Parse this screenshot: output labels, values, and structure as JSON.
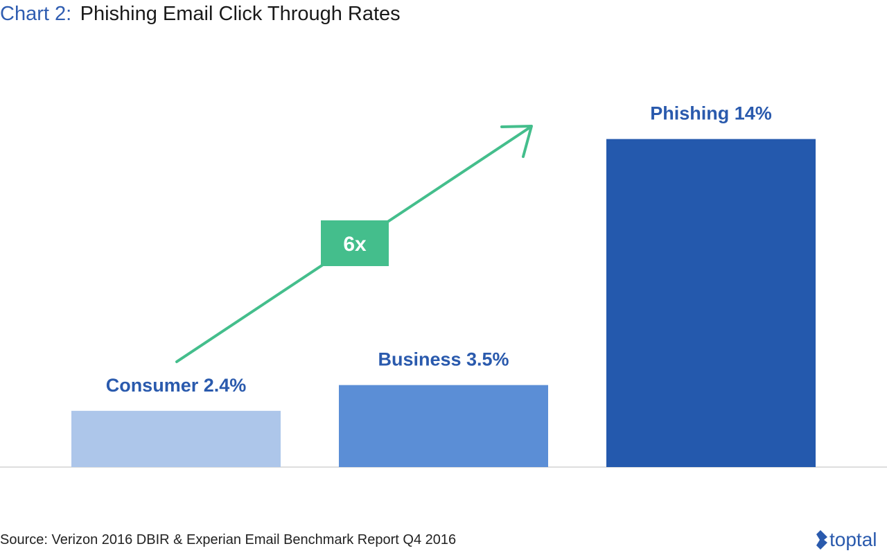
{
  "chart_data": {
    "type": "bar",
    "title_prefix": "Chart 2:",
    "title": "Phishing Email Click Through Rates",
    "categories": [
      "Consumer",
      "Business",
      "Phishing"
    ],
    "values": [
      2.4,
      3.5,
      14
    ],
    "labels": [
      "Consumer 2.4%",
      "Business 3.5%",
      "Phishing 14%"
    ],
    "colors": [
      "#adc6ea",
      "#5b8ed6",
      "#2459ad"
    ],
    "ylim": [
      0,
      16
    ],
    "grid": false,
    "annotation": {
      "text": "6x",
      "color": "#44be8c"
    },
    "source": "Source: Verizon 2016 DBIR & Experian Email Benchmark Report Q4 2016"
  },
  "brand": {
    "name": "toptal",
    "icon": "toptal-logo-icon",
    "color": "#2a5aad"
  }
}
